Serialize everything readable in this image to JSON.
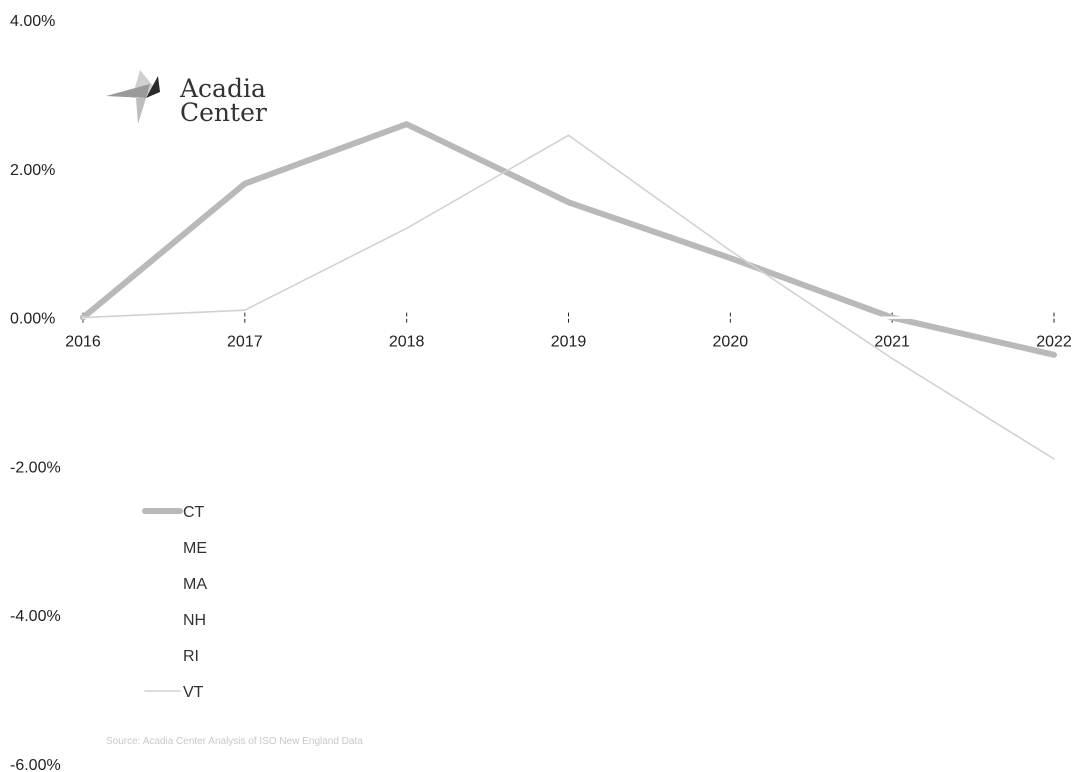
{
  "logo": {
    "line1": "Acadia",
    "line2": "Center"
  },
  "source": "Source: Acadia Center Analysis of ISO New England Data",
  "chart_data": {
    "type": "line",
    "x": [
      "2016",
      "2017",
      "2018",
      "2019",
      "2020",
      "2021",
      "2022"
    ],
    "ylim": [
      -6,
      4
    ],
    "y_ticks": [
      "4.00%",
      "2.00%",
      "0.00%",
      "-2.00%",
      "-4.00%",
      "-6.00%"
    ],
    "y_tick_values": [
      4,
      2,
      0,
      -2,
      -4,
      -6
    ],
    "grid": false,
    "legend_position": "lower-left",
    "series": [
      {
        "name": "CT",
        "color": "#b9b9b9",
        "values": [
          0,
          1.8,
          2.6,
          1.55,
          0.8,
          0.0,
          -0.5
        ]
      },
      {
        "name": "ME",
        "color": "#ffffff",
        "values": [
          0,
          0,
          0,
          0,
          0,
          0,
          0
        ]
      },
      {
        "name": "MA",
        "color": "#ffffff",
        "values": [
          0,
          0,
          0,
          0,
          0,
          0,
          0
        ]
      },
      {
        "name": "NH",
        "color": "#ffffff",
        "values": [
          0,
          0,
          0,
          0,
          0,
          0,
          0
        ]
      },
      {
        "name": "RI",
        "color": "#ffffff",
        "values": [
          0,
          0,
          0,
          0,
          0,
          0,
          0
        ]
      },
      {
        "name": "VT",
        "color": "#d2d2d2",
        "values": [
          0,
          0.1,
          1.2,
          2.45,
          0.9,
          -0.55,
          -1.9
        ]
      }
    ]
  }
}
